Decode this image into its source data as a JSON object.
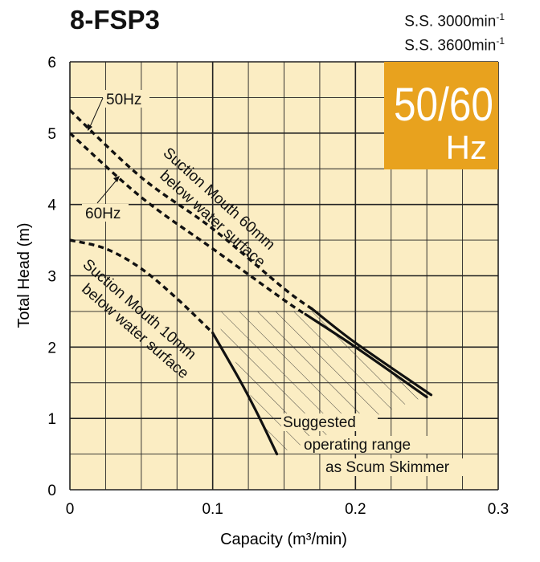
{
  "title": "8-FSP3",
  "speeds": [
    {
      "label": "S.S. 3000min",
      "exp": "-1"
    },
    {
      "label": "S.S. 3600min",
      "exp": "-1"
    }
  ],
  "badge": {
    "top": "50/60",
    "bottom": "Hz",
    "color": "#E8A21E"
  },
  "colors": {
    "plot_bg": "#FBEDC3",
    "grid": "#222222",
    "curve": "#111111"
  },
  "chart_data": {
    "type": "line",
    "title": "8-FSP3",
    "xlabel": "Capacity (m³/min)",
    "ylabel": "Total Head (m)",
    "xlim": [
      0,
      0.3
    ],
    "ylim": [
      0,
      6
    ],
    "xticks": [
      0,
      0.1,
      0.2,
      0.3
    ],
    "xtick_labels": [
      "0",
      "0.1",
      "0.2",
      "0.3"
    ],
    "yticks": [
      0,
      1,
      2,
      3,
      4,
      5,
      6
    ],
    "ytick_labels": [
      "0",
      "1",
      "2",
      "3",
      "4",
      "5",
      "6"
    ],
    "x_grid_step": 0.025,
    "y_grid_step": 0.5,
    "grid": true,
    "series": [
      {
        "name": "60Hz, suction mouth 60mm below water surface (dashed)",
        "style": "dashed",
        "x": [
          0,
          0.05,
          0.1,
          0.15,
          0.165
        ],
        "y": [
          5.0,
          4.1,
          3.38,
          2.66,
          2.46
        ]
      },
      {
        "name": "60Hz, suction mouth 60mm below water surface",
        "style": "solid",
        "x": [
          0.165,
          0.2,
          0.25
        ],
        "y": [
          2.46,
          2.0,
          1.3
        ]
      },
      {
        "name": "50Hz, suction mouth 60mm below water surface (dashed)",
        "style": "dashed",
        "x": [
          0,
          0.05,
          0.1,
          0.15,
          0.17
        ],
        "y": [
          5.32,
          4.38,
          3.66,
          2.82,
          2.53
        ]
      },
      {
        "name": "50Hz, suction mouth 60mm below water surface",
        "style": "solid",
        "x": [
          0.17,
          0.2,
          0.253
        ],
        "y": [
          2.53,
          2.06,
          1.33
        ]
      },
      {
        "name": "Suction mouth 10mm below water surface (dashed)",
        "style": "dashed",
        "x": [
          0,
          0.025,
          0.05,
          0.075,
          0.1
        ],
        "y": [
          3.5,
          3.38,
          3.1,
          2.68,
          2.2
        ]
      },
      {
        "name": "Suction mouth 10mm below water surface",
        "style": "solid",
        "x": [
          0.1,
          0.12,
          0.133,
          0.145
        ],
        "y": [
          2.2,
          1.5,
          1.0,
          0.5
        ]
      }
    ],
    "region": {
      "name": "Suggested operating range as Scum Skimmer",
      "hatched": true,
      "x": [
        0.1,
        0.17,
        0.248,
        0.145,
        0.1
      ],
      "y": [
        2.5,
        2.5,
        1.3,
        0.5,
        2.5
      ]
    },
    "annotations": {
      "hz50": "50Hz",
      "hz60": "60Hz",
      "mouth60_line1": "Suction Mouth 60mm",
      "mouth60_line2": "below water surface",
      "mouth10_line1": "Suction Mouth 10mm",
      "mouth10_line2": "below water surface",
      "range_line1": "Suggested",
      "range_line2": "operating range",
      "range_line3": "as Scum Skimmer"
    }
  }
}
